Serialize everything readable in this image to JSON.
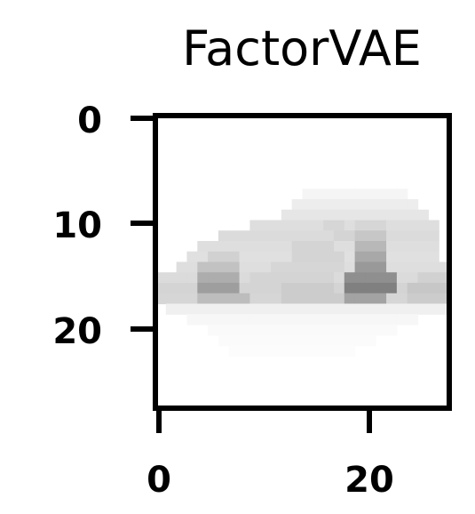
{
  "figure": {
    "title": "FactorVAE"
  },
  "image": {
    "description_free": true,
    "grid_size": 28,
    "colormap": "gray_r",
    "x_ticks": [
      0,
      20
    ],
    "y_ticks": [
      0,
      10,
      20
    ],
    "x_tick_labels": [
      "0",
      "20"
    ],
    "y_tick_labels": [
      "0",
      "10",
      "20"
    ],
    "rows": [
      {
        "r": 7,
        "segs": [
          [
            14,
            23,
            0.04
          ]
        ]
      },
      {
        "r": 8,
        "segs": [
          [
            13,
            24,
            0.07
          ]
        ]
      },
      {
        "r": 9,
        "segs": [
          [
            12,
            25,
            0.1
          ]
        ]
      },
      {
        "r": 10,
        "segs": [
          [
            9,
            26,
            0.13
          ],
          [
            16,
            17,
            0.16
          ],
          [
            19,
            21,
            0.16
          ]
        ]
      },
      {
        "r": 11,
        "segs": [
          [
            6,
            26,
            0.14
          ],
          [
            17,
            18,
            0.17
          ],
          [
            19,
            21,
            0.22
          ]
        ]
      },
      {
        "r": 12,
        "segs": [
          [
            4,
            26,
            0.13
          ],
          [
            13,
            16,
            0.17
          ],
          [
            19,
            21,
            0.28
          ]
        ]
      },
      {
        "r": 13,
        "segs": [
          [
            3,
            26,
            0.12
          ],
          [
            5,
            7,
            0.18
          ],
          [
            13,
            17,
            0.17
          ],
          [
            19,
            21,
            0.34
          ]
        ]
      },
      {
        "r": 14,
        "segs": [
          [
            2,
            27,
            0.13
          ],
          [
            4,
            7,
            0.24
          ],
          [
            11,
            17,
            0.16
          ],
          [
            19,
            21,
            0.4
          ]
        ]
      },
      {
        "r": 15,
        "segs": [
          [
            0,
            27,
            0.14
          ],
          [
            4,
            7,
            0.32
          ],
          [
            9,
            16,
            0.17
          ],
          [
            18,
            22,
            0.44
          ],
          [
            25,
            27,
            0.18
          ]
        ]
      },
      {
        "r": 16,
        "segs": [
          [
            0,
            27,
            0.17
          ],
          [
            4,
            7,
            0.38
          ],
          [
            12,
            16,
            0.2
          ],
          [
            18,
            22,
            0.5
          ],
          [
            24,
            27,
            0.22
          ]
        ]
      },
      {
        "r": 17,
        "segs": [
          [
            0,
            27,
            0.16
          ],
          [
            4,
            8,
            0.26
          ],
          [
            12,
            17,
            0.2
          ],
          [
            18,
            21,
            0.36
          ],
          [
            24,
            27,
            0.2
          ]
        ]
      },
      {
        "r": 18,
        "segs": [
          [
            1,
            27,
            0.06
          ]
        ]
      },
      {
        "r": 19,
        "segs": [
          [
            3,
            24,
            0.03
          ]
        ]
      },
      {
        "r": 20,
        "segs": [
          [
            5,
            22,
            0.02
          ]
        ]
      },
      {
        "r": 21,
        "segs": [
          [
            6,
            20,
            0.015
          ]
        ]
      },
      {
        "r": 22,
        "segs": [
          [
            7,
            18,
            0.01
          ]
        ]
      }
    ]
  }
}
